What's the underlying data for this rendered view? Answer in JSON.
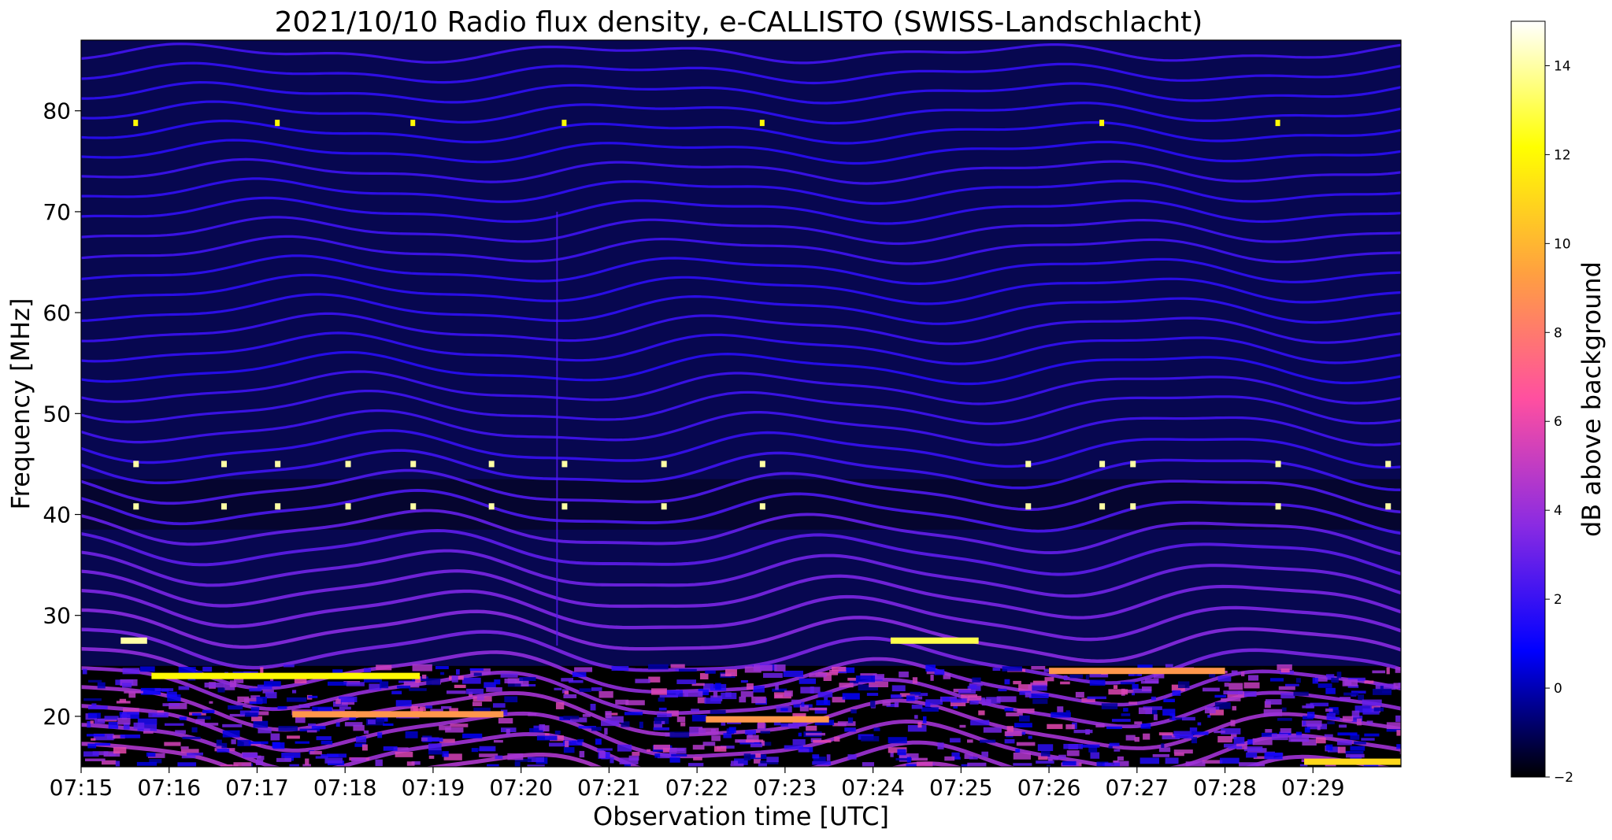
{
  "chart_data": {
    "type": "heatmap",
    "title": "2021/10/10  Radio flux density, e-CALLISTO (SWISS-Landschlacht)",
    "xlabel": "Observation time [UTC]",
    "ylabel": "Frequency [MHz]",
    "x_range": [
      "07:15",
      "07:30"
    ],
    "xlim_minutes": [
      0,
      15
    ],
    "ylim": [
      15,
      87
    ],
    "x_ticks": [
      "07:15",
      "07:16",
      "07:17",
      "07:18",
      "07:19",
      "07:20",
      "07:21",
      "07:22",
      "07:23",
      "07:24",
      "07:25",
      "07:26",
      "07:27",
      "07:28",
      "07:29"
    ],
    "y_ticks": [
      20,
      30,
      40,
      50,
      60,
      70,
      80
    ],
    "colorbar": {
      "label": "dB above background",
      "range": [
        -2,
        15
      ],
      "ticks": [
        -2,
        0,
        2,
        4,
        6,
        8,
        10,
        12,
        14
      ],
      "colormap": "gnuplot2",
      "colors": [
        "#000000",
        "#0000ff",
        "#8a2be2",
        "#ff4fa0",
        "#ffa040",
        "#ffff00",
        "#ffffff"
      ]
    },
    "features": [
      {
        "kind": "carrier",
        "freq": 27.5,
        "t_start": 0.45,
        "t_end": 0.75,
        "level": 14
      },
      {
        "kind": "carrier",
        "freq": 24.0,
        "t_start": 0.8,
        "t_end": 3.85,
        "level": 12
      },
      {
        "kind": "carrier",
        "freq": 20.2,
        "t_start": 2.4,
        "t_end": 4.8,
        "level": 9
      },
      {
        "kind": "carrier",
        "freq": 19.7,
        "t_start": 7.1,
        "t_end": 8.5,
        "level": 9
      },
      {
        "kind": "carrier",
        "freq": 27.5,
        "t_start": 9.2,
        "t_end": 10.2,
        "level": 13
      },
      {
        "kind": "carrier",
        "freq": 24.5,
        "t_start": 11.0,
        "t_end": 13.0,
        "level": 9
      },
      {
        "kind": "carrier",
        "freq": 15.5,
        "t_start": 13.9,
        "t_end": 15.0,
        "level": 11
      }
    ],
    "spikes_minutes": [
      0.62,
      1.62,
      2.23,
      3.03,
      3.77,
      4.66,
      5.49,
      6.62,
      7.74,
      10.76,
      11.6,
      11.95,
      13.6,
      14.85
    ]
  }
}
